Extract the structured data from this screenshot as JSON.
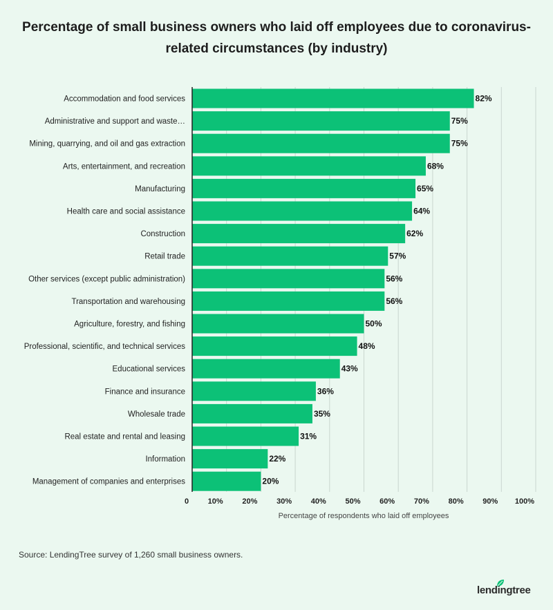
{
  "title": "Percentage of small business owners who laid off employees due to coronavirus-related circumstances (by industry)",
  "source": "Source: LendingTree survey of 1,260 small business owners.",
  "logo_text": "lendingtree",
  "colors": {
    "bar": "#0cc177",
    "background": "#ebf8f0",
    "grid": "#c9d6cf",
    "axis": "#222222"
  },
  "chart_data": {
    "type": "bar",
    "orientation": "horizontal",
    "title": "Percentage of small business owners who laid off employees due to coronavirus-related circumstances (by industry)",
    "xlabel": "Percentage of respondents who laid off employees",
    "ylabel": "",
    "xlim": [
      0,
      100
    ],
    "x_ticks": [
      "0",
      "10%",
      "20%",
      "30%",
      "40%",
      "50%",
      "60%",
      "70%",
      "80%",
      "90%",
      "100%"
    ],
    "grid": true,
    "categories": [
      "Accommodation and food services",
      "Administrative and support and waste…",
      "Mining, quarrying, and oil and gas extraction",
      "Arts, entertainment, and recreation",
      "Manufacturing",
      "Health care and social assistance",
      "Construction",
      "Retail trade",
      "Other services (except public administration)",
      "Transportation and warehousing",
      "Agriculture, forestry, and fishing",
      "Professional, scientific, and technical services",
      "Educational services",
      "Finance and insurance",
      "Wholesale trade",
      "Real estate and rental and leasing",
      "Information",
      "Management of companies and enterprises"
    ],
    "values": [
      82,
      75,
      75,
      68,
      65,
      64,
      62,
      57,
      56,
      56,
      50,
      48,
      43,
      36,
      35,
      31,
      22,
      20
    ],
    "value_labels": [
      "82%",
      "75%",
      "75%",
      "68%",
      "65%",
      "64%",
      "62%",
      "57%",
      "56%",
      "56%",
      "50%",
      "48%",
      "43%",
      "36%",
      "35%",
      "31%",
      "22%",
      "20%"
    ]
  }
}
